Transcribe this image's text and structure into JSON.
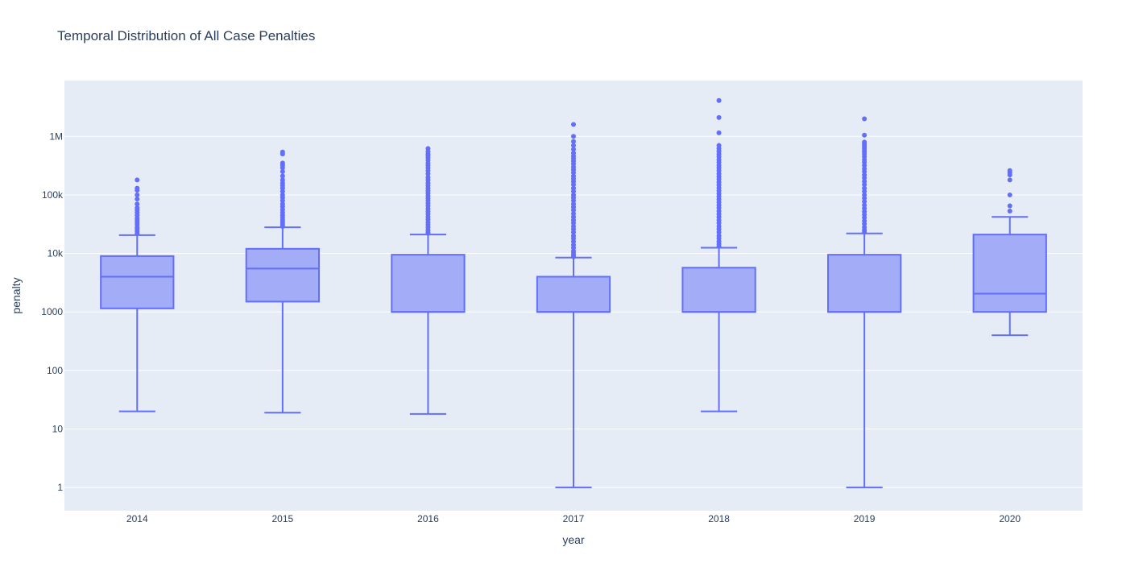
{
  "chart_data": {
    "type": "box",
    "title": "Temporal Distribution of All Case Penalties",
    "xlabel": "year",
    "ylabel": "penalty",
    "y_scale": "log",
    "ylim": [
      0.4,
      9000000
    ],
    "y_ticks": [
      1,
      10,
      100,
      1000,
      10000,
      100000,
      1000000
    ],
    "y_tick_labels": [
      "1",
      "10",
      "100",
      "1000",
      "10k",
      "100k",
      "1M"
    ],
    "grid": true,
    "legend": "none",
    "colors": {
      "box_fill": "#a3acf6",
      "box_line": "#636efa",
      "plot_bg": "#e5ecf6",
      "grid": "#ffffff",
      "text": "#2a3f5f"
    },
    "categories": [
      "2014",
      "2015",
      "2016",
      "2017",
      "2018",
      "2019",
      "2020"
    ],
    "boxes": [
      {
        "x": "2014",
        "lower_fence": 20,
        "q1": 1150,
        "median": 4000,
        "q3": 9000,
        "upper_fence": 20500,
        "outliers": [
          180000,
          130000,
          120000,
          100000,
          85000,
          70000,
          60000,
          55000,
          50000,
          45000,
          40000,
          37000,
          34000,
          31000,
          28000,
          26000,
          24000,
          22000
        ]
      },
      {
        "x": "2015",
        "lower_fence": 19,
        "q1": 1500,
        "median": 5500,
        "q3": 12000,
        "upper_fence": 28000,
        "outliers": [
          540000,
          500000,
          350000,
          320000,
          290000,
          250000,
          210000,
          180000,
          160000,
          145000,
          130000,
          115000,
          100000,
          90000,
          80000,
          70000,
          63000,
          56000,
          50000,
          45000,
          41000,
          37000,
          34000,
          31000,
          29000
        ]
      },
      {
        "x": "2016",
        "lower_fence": 18,
        "q1": 1000,
        "median": 1000,
        "q3": 9500,
        "upper_fence": 21000,
        "outliers": [
          620000,
          550000,
          500000,
          470000,
          430000,
          390000,
          350000,
          320000,
          290000,
          260000,
          230000,
          200000,
          180000,
          160000,
          145000,
          130000,
          118000,
          107000,
          97000,
          88000,
          80000,
          72000,
          65000,
          58000,
          52000,
          47000,
          42000,
          38000,
          34000,
          31000,
          28000,
          25000,
          23000,
          22000
        ]
      },
      {
        "x": "2017",
        "lower_fence": 1,
        "q1": 1000,
        "median": 1000,
        "q3": 4000,
        "upper_fence": 8500,
        "outliers": [
          1600000,
          1000000,
          820000,
          700000,
          600000,
          520000,
          460000,
          420000,
          380000,
          340000,
          300000,
          270000,
          240000,
          210000,
          190000,
          170000,
          150000,
          130000,
          115000,
          100000,
          90000,
          80000,
          70000,
          62000,
          55000,
          48000,
          42000,
          37000,
          33000,
          29000,
          26000,
          23000,
          20000,
          18000,
          16000,
          14000,
          12500,
          11000,
          10000,
          9200,
          8800
        ]
      },
      {
        "x": "2018",
        "lower_fence": 20,
        "q1": 1000,
        "median": 1000,
        "q3": 5700,
        "upper_fence": 12500,
        "outliers": [
          4100000,
          2100000,
          1150000,
          700000,
          620000,
          560000,
          500000,
          450000,
          400000,
          360000,
          320000,
          290000,
          260000,
          230000,
          205000,
          185000,
          165000,
          148000,
          132000,
          118000,
          105000,
          94000,
          84000,
          75000,
          67000,
          60000,
          53000,
          47000,
          42000,
          37000,
          33000,
          29000,
          26000,
          23000,
          20000,
          18000,
          16000,
          14500,
          13200
        ]
      },
      {
        "x": "2019",
        "lower_fence": 1,
        "q1": 1000,
        "median": 1000,
        "q3": 9500,
        "upper_fence": 22000,
        "outliers": [
          2000000,
          1050000,
          800000,
          750000,
          700000,
          650000,
          600000,
          550000,
          500000,
          450000,
          400000,
          360000,
          320000,
          280000,
          250000,
          220000,
          195000,
          170000,
          150000,
          130000,
          115000,
          100000,
          88000,
          77000,
          67000,
          59000,
          52000,
          46000,
          41000,
          36000,
          32000,
          28000,
          25000,
          23000
        ]
      },
      {
        "x": "2020",
        "lower_fence": 400,
        "q1": 1000,
        "median": 2050,
        "q3": 21000,
        "upper_fence": 42000,
        "outliers": [
          260000,
          240000,
          220000,
          180000,
          100000,
          65000,
          53000
        ]
      }
    ]
  }
}
